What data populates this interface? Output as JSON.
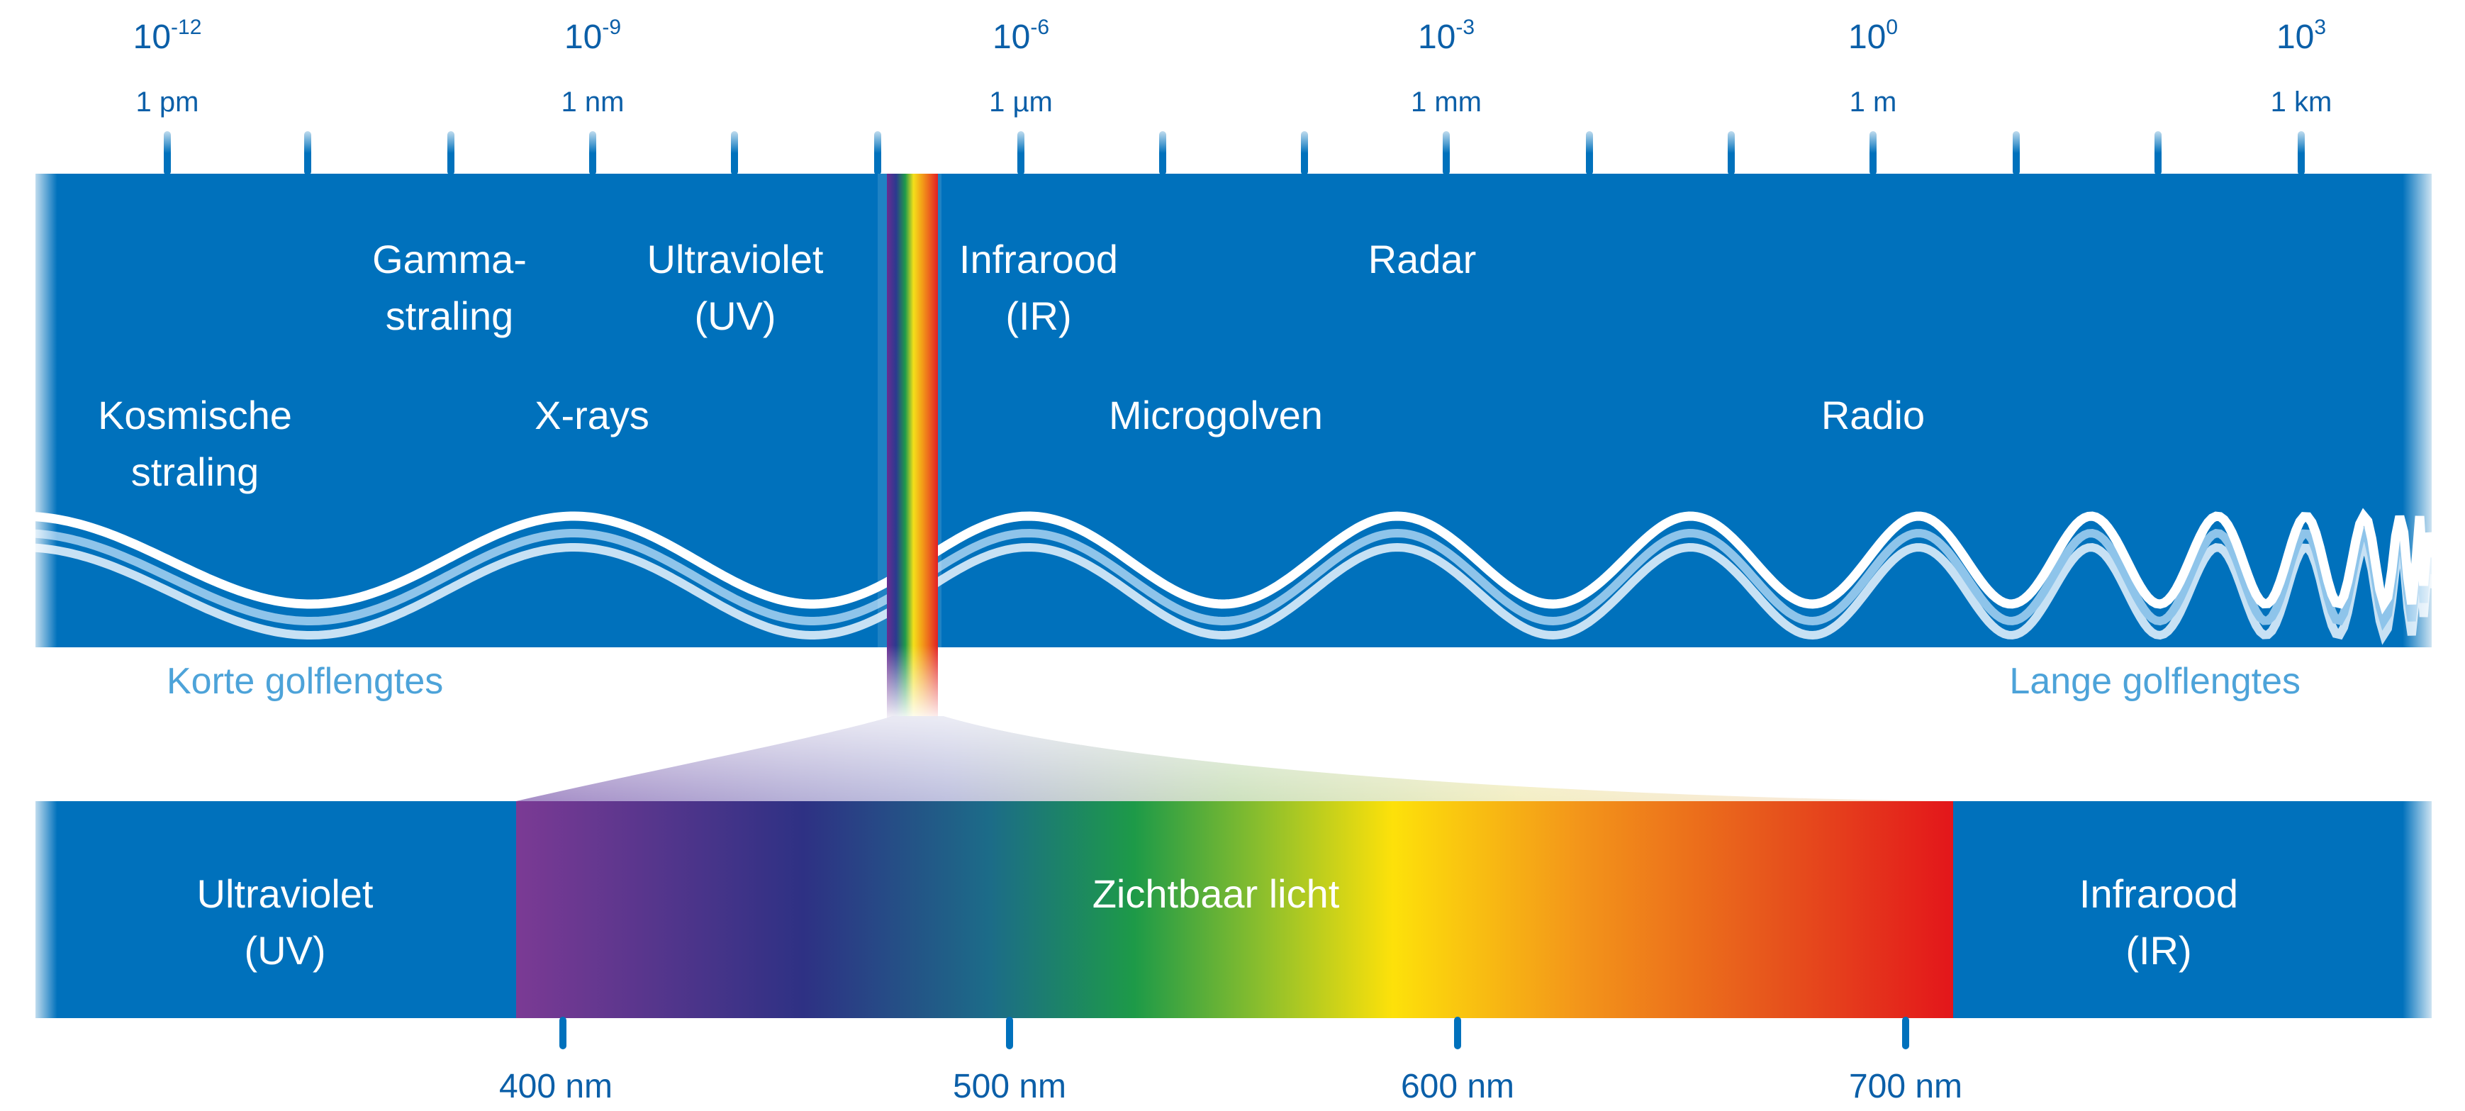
{
  "scale": {
    "ticks": [
      {
        "base": "10",
        "exp": "-12",
        "unit": "1 pm"
      },
      {
        "base": "10",
        "exp": "-9",
        "unit": "1 nm"
      },
      {
        "base": "10",
        "exp": "-6",
        "unit": "1 µm"
      },
      {
        "base": "10",
        "exp": "-3",
        "unit": "1 mm"
      },
      {
        "base": "10",
        "exp": "0",
        "unit": "1 m"
      },
      {
        "base": "10",
        "exp": "3",
        "unit": "1 km"
      }
    ]
  },
  "bands": {
    "cosmic": [
      "Kosmische",
      "straling"
    ],
    "gamma": [
      "Gamma-",
      "straling"
    ],
    "xray": [
      "X-rays"
    ],
    "uv": [
      "Ultraviolet",
      "(UV)"
    ],
    "ir": [
      "Infrarood",
      "(IR)"
    ],
    "radar": [
      "Radar"
    ],
    "micro": [
      "Microgolven"
    ],
    "radio": [
      "Radio"
    ]
  },
  "annotations": {
    "short": "Korte golflengtes",
    "long": "Lange golflengtes"
  },
  "visible": {
    "uv": [
      "Ultraviolet",
      "(UV)"
    ],
    "center": "Zichtbaar licht",
    "ir": [
      "Infrarood",
      "(IR)"
    ],
    "ticks": [
      "400 nm",
      "500 nm",
      "600 nm",
      "700 nm"
    ]
  },
  "colors": {
    "band_blue": "#0071bc",
    "scale_text": "#0b5fa8",
    "short_long_text": "#4da3d9",
    "wave_white": "#ffffff",
    "wave_light": "#8ec4ea"
  }
}
